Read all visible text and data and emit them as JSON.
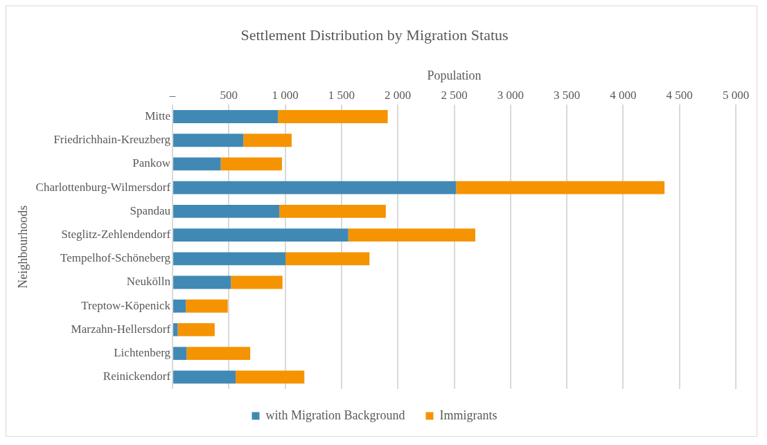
{
  "chart_data": {
    "type": "bar",
    "orientation": "horizontal",
    "stacked": true,
    "title": "Settlement Distribution by Migration Status",
    "xlabel": "Population",
    "ylabel": "Neighbourhoods",
    "categories": [
      "Mitte",
      "Friedrichhain-Kreuzberg",
      "Pankow",
      "Charlottenburg-Wilmersdorf",
      "Spandau",
      "Steglitz-Zehlendendorf",
      "Tempelhof-Schöneberg",
      "Neukölln",
      "Treptow-Köpenick",
      "Marzahn-Hellersdorf",
      "Lichtenberg",
      "Reinickendorf"
    ],
    "series": [
      {
        "name": "with Migration Background",
        "color": "#4189b5",
        "values": [
          936,
          629,
          428,
          2517,
          948,
          1560,
          1003,
          518,
          118,
          46,
          125,
          560
        ]
      },
      {
        "name": "Immigrants",
        "color": "#f59300",
        "values": [
          974,
          428,
          543,
          1850,
          945,
          1127,
          745,
          458,
          372,
          328,
          564,
          610
        ]
      }
    ],
    "xlim": [
      0,
      5000
    ],
    "xticks": [
      {
        "value": 0,
        "label": "–"
      },
      {
        "value": 500,
        "label": "500"
      },
      {
        "value": 1000,
        "label": "1 000"
      },
      {
        "value": 1500,
        "label": "1 500"
      },
      {
        "value": 2000,
        "label": "2 000"
      },
      {
        "value": 2500,
        "label": "2 500"
      },
      {
        "value": 3000,
        "label": "3 000"
      },
      {
        "value": 3500,
        "label": "3 500"
      },
      {
        "value": 4000,
        "label": "4 000"
      },
      {
        "value": 4500,
        "label": "4 500"
      },
      {
        "value": 5000,
        "label": "5 000"
      }
    ],
    "grid": "x",
    "legend": "bottom"
  }
}
